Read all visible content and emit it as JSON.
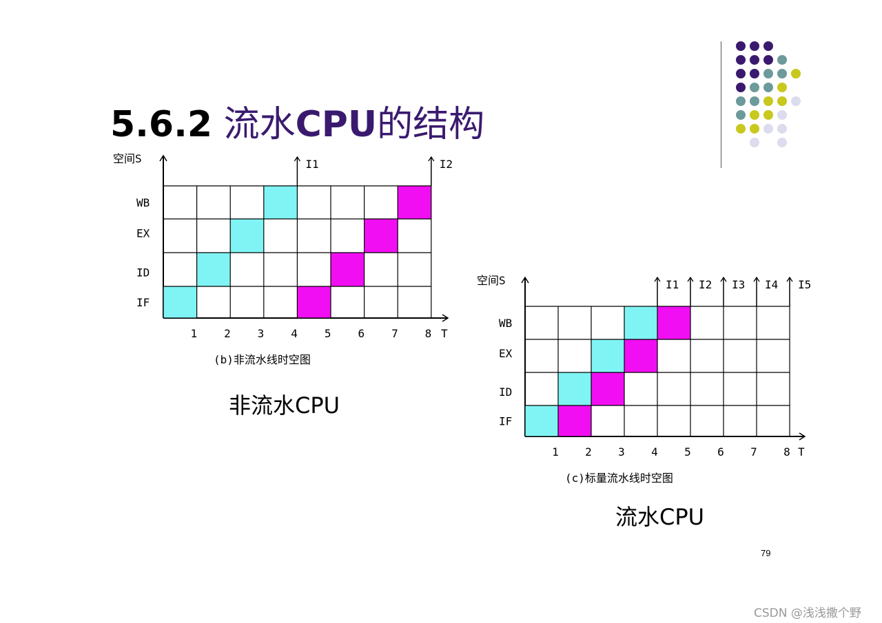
{
  "slide": {
    "title_number": "5.6.2",
    "title_word1": "流水",
    "title_word2": "CPU",
    "title_word3": "的结构",
    "page_number": "79",
    "watermark": "CSDN @浅浅撒个野"
  },
  "colors": {
    "cyan": "#80f4f4",
    "magenta": "#f20ef2",
    "dots": [
      "#3a1a6e",
      "#6d9a9a",
      "#c8c81e",
      "#dcdcee"
    ]
  },
  "diagram_b": {
    "y_axis_label": "空间S",
    "x_axis_label": "T",
    "stages": [
      "WB",
      "EX",
      "ID",
      "IF"
    ],
    "ticks": [
      "1",
      "2",
      "3",
      "4",
      "5",
      "6",
      "7",
      "8"
    ],
    "instruction_markers": [
      "I1",
      "I2"
    ],
    "caption": "(b)非流水线时空图",
    "label": "非流水CPU",
    "cells": [
      {
        "instr": "I1",
        "stage": "IF",
        "t": 1
      },
      {
        "instr": "I1",
        "stage": "ID",
        "t": 2
      },
      {
        "instr": "I1",
        "stage": "EX",
        "t": 3
      },
      {
        "instr": "I1",
        "stage": "WB",
        "t": 4
      },
      {
        "instr": "I2",
        "stage": "IF",
        "t": 5
      },
      {
        "instr": "I2",
        "stage": "ID",
        "t": 6
      },
      {
        "instr": "I2",
        "stage": "EX",
        "t": 7
      },
      {
        "instr": "I2",
        "stage": "WB",
        "t": 8
      }
    ]
  },
  "diagram_c": {
    "y_axis_label": "空间S",
    "x_axis_label": "T",
    "stages": [
      "WB",
      "EX",
      "ID",
      "IF"
    ],
    "ticks": [
      "1",
      "2",
      "3",
      "4",
      "5",
      "6",
      "7",
      "8"
    ],
    "instruction_markers": [
      "I1",
      "I2",
      "I3",
      "I4",
      "I5"
    ],
    "caption": "(c)标量流水线时空图",
    "label": "流水CPU",
    "cells": [
      {
        "instr": "I1",
        "stage": "IF",
        "t": 1
      },
      {
        "instr": "I1",
        "stage": "ID",
        "t": 2
      },
      {
        "instr": "I1",
        "stage": "EX",
        "t": 3
      },
      {
        "instr": "I1",
        "stage": "WB",
        "t": 4
      },
      {
        "instr": "I2",
        "stage": "IF",
        "t": 2
      },
      {
        "instr": "I2",
        "stage": "ID",
        "t": 3
      },
      {
        "instr": "I2",
        "stage": "EX",
        "t": 4
      },
      {
        "instr": "I2",
        "stage": "WB",
        "t": 5
      }
    ]
  }
}
